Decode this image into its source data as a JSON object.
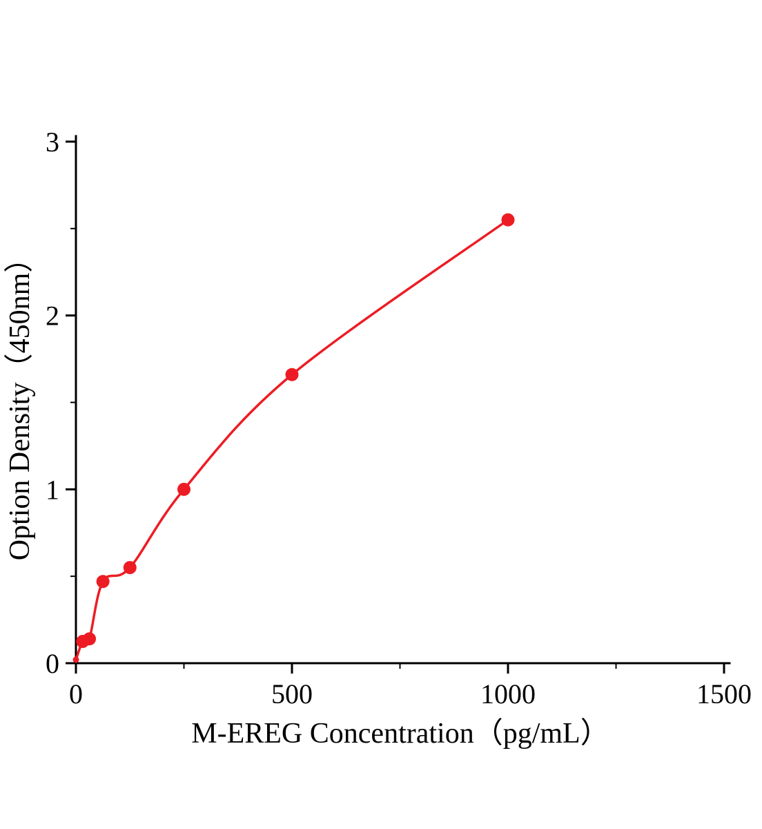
{
  "chart_data": {
    "type": "scatter",
    "title": "",
    "xlabel": "M-EREG Concentration（pg/mL）",
    "ylabel": "Option Density（450nm）",
    "x": [
      0,
      15.6,
      31.2,
      62.5,
      125,
      250,
      500,
      1000
    ],
    "y": [
      0.02,
      0.125,
      0.14,
      0.47,
      0.55,
      1.0,
      1.66,
      2.55
    ],
    "xlim": [
      0,
      1500
    ],
    "ylim": [
      0,
      3
    ],
    "x_major_ticks": [
      0,
      500,
      1000,
      1500
    ],
    "x_minor_ticks": [
      250,
      750,
      1250
    ],
    "y_major_ticks": [
      0,
      1,
      2,
      3
    ],
    "y_minor_ticks": [
      0.5,
      1.5,
      2.5
    ],
    "legend_position": "none",
    "grid": false,
    "marker": "circle",
    "marker_radius": 9.5,
    "line_style": "smooth-fit",
    "point_color": "#ed1c24",
    "line_color": "#ed1c24",
    "axis_color": "#000000"
  }
}
